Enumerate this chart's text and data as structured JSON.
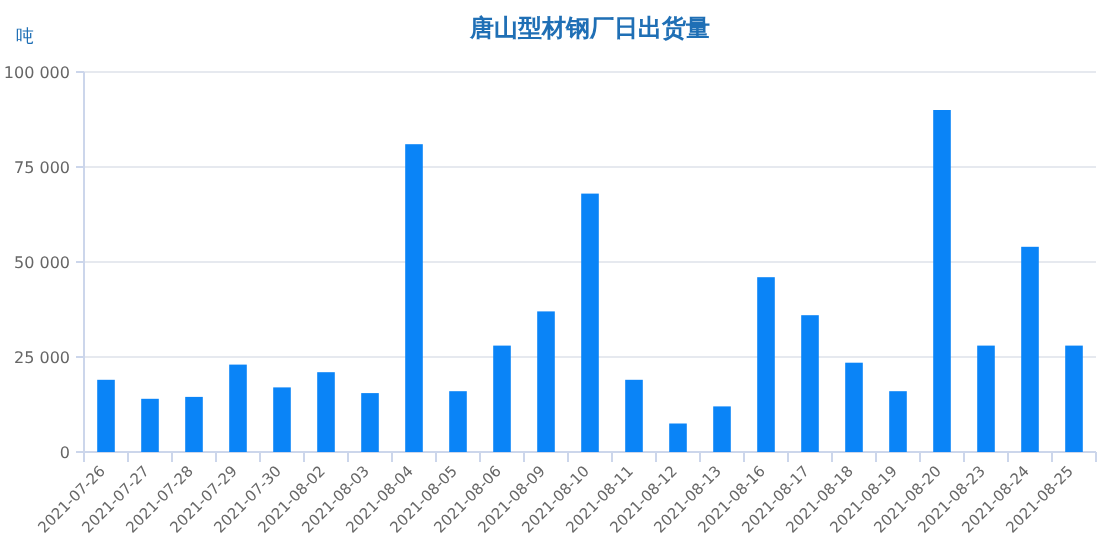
{
  "chart_data": {
    "type": "bar",
    "title": "唐山型材钢厂日出货量",
    "ylabel": "吨",
    "color": "#0a84f7",
    "grid": "y",
    "categories": [
      "2021-07-26",
      "2021-07-27",
      "2021-07-28",
      "2021-07-29",
      "2021-07-30",
      "2021-08-02",
      "2021-08-03",
      "2021-08-04",
      "2021-08-05",
      "2021-08-06",
      "2021-08-09",
      "2021-08-10",
      "2021-08-11",
      "2021-08-12",
      "2021-08-13",
      "2021-08-16",
      "2021-08-17",
      "2021-08-18",
      "2021-08-19",
      "2021-08-20",
      "2021-08-23",
      "2021-08-24",
      "2021-08-25"
    ],
    "values": [
      19000,
      14000,
      14500,
      23000,
      17000,
      21000,
      15500,
      81000,
      16000,
      28000,
      37000,
      68000,
      19000,
      7500,
      12000,
      46000,
      36000,
      23500,
      16000,
      90000,
      28000,
      54000,
      28000
    ],
    "ylim": [
      0,
      100000
    ],
    "yticks": [
      0,
      {
        "value": 25000,
        "label": "25 000"
      },
      {
        "value": 50000,
        "label": "50 000"
      },
      {
        "value": 75000,
        "label": "75 000"
      },
      {
        "value": 100000,
        "label": "100 000"
      }
    ]
  }
}
